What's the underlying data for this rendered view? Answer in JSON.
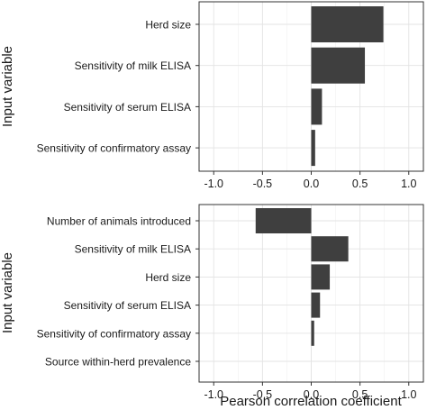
{
  "chart_data": [
    {
      "type": "bar",
      "orientation": "horizontal",
      "ylabel": "Input variable",
      "xlabel": "",
      "xlim": [
        -1.15,
        1.15
      ],
      "xticks": [
        -1.0,
        -0.5,
        0.0,
        0.5,
        1.0
      ],
      "xtick_labels": [
        "-1.0",
        "-0.5",
        "0.0",
        "0.5",
        "1.0"
      ],
      "grid": true,
      "bar_color": "#3f3f3f",
      "categories": [
        "Herd size",
        "Sensitivity of milk ELISA",
        "Sensitivity of serum ELISA",
        "Sensitivity of confirmatory assay"
      ],
      "values": [
        0.74,
        0.55,
        0.11,
        0.04
      ]
    },
    {
      "type": "bar",
      "orientation": "horizontal",
      "ylabel": "Input variable",
      "xlabel": "Pearson correlation coefficient",
      "xlim": [
        -1.15,
        1.15
      ],
      "xticks": [
        -1.0,
        -0.5,
        0.0,
        0.5,
        1.0
      ],
      "xtick_labels": [
        "-1.0",
        "-0.5",
        "0.0",
        "0.5",
        "1.0"
      ],
      "grid": true,
      "bar_color": "#3f3f3f",
      "categories": [
        "Number of animals introduced",
        "Sensitivity of milk ELISA",
        "Herd size",
        "Sensitivity of serum ELISA",
        "Sensitivity of confirmatory assay",
        "Source within-herd prevalence"
      ],
      "values": [
        -0.57,
        0.38,
        0.19,
        0.09,
        0.03,
        0.0
      ]
    }
  ]
}
